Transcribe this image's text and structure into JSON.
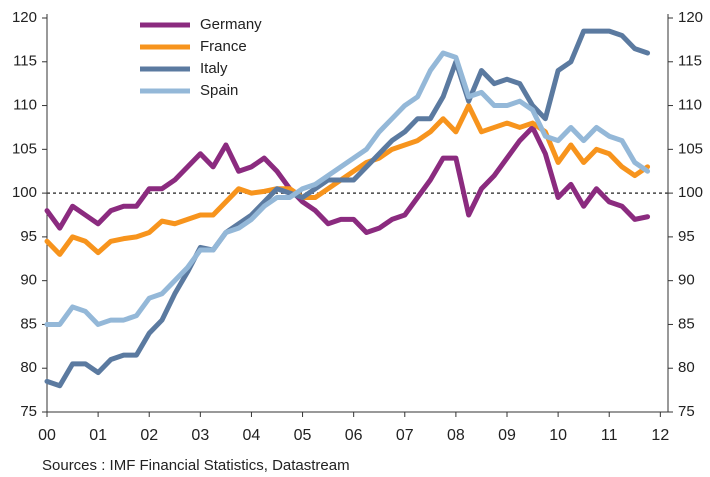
{
  "chart_data": {
    "type": "line",
    "x": [
      0,
      0.25,
      0.5,
      0.75,
      1,
      1.25,
      1.5,
      1.75,
      2,
      2.25,
      2.5,
      2.75,
      3,
      3.25,
      3.5,
      3.75,
      4,
      4.25,
      4.5,
      4.75,
      5,
      5.25,
      5.5,
      5.75,
      6,
      6.25,
      6.5,
      6.75,
      7,
      7.25,
      7.5,
      7.75,
      8,
      8.25,
      8.5,
      8.75,
      9,
      9.25,
      9.5,
      9.75,
      10,
      10.25,
      10.5,
      10.75,
      11,
      11.25,
      11.5,
      11.75
    ],
    "series": [
      {
        "name": "Germany",
        "color": "#8b2b7f",
        "values": [
          98,
          96,
          98.5,
          97.5,
          96.5,
          98,
          98.5,
          98.5,
          100.5,
          100.5,
          101.5,
          103,
          104.5,
          103,
          105.5,
          102.5,
          103,
          104,
          102.5,
          100.5,
          99,
          98,
          96.5,
          97,
          97,
          95.5,
          96,
          97,
          97.5,
          99.5,
          101.5,
          104,
          104,
          97.5,
          100.5,
          102,
          104,
          106,
          107.5,
          104.5,
          99.5,
          101,
          98.5,
          100.5,
          99,
          98.5,
          97,
          97.3
        ]
      },
      {
        "name": "France",
        "color": "#f7941d",
        "values": [
          94.5,
          93,
          95,
          94.5,
          93.2,
          94.5,
          94.8,
          95,
          95.5,
          96.8,
          96.5,
          97,
          97.5,
          97.5,
          99,
          100.5,
          100,
          100.2,
          100.5,
          100.5,
          99.5,
          99.5,
          100.5,
          101.5,
          102.5,
          103.5,
          104,
          105,
          105.5,
          106,
          107,
          108.5,
          107,
          110,
          107,
          107.5,
          108,
          107.5,
          108,
          107,
          103.5,
          105.5,
          103.5,
          105,
          104.5,
          103,
          102,
          103
        ]
      },
      {
        "name": "Italy",
        "color": "#5b7aa0",
        "values": [
          78.5,
          78,
          80.5,
          80.5,
          79.5,
          81,
          81.5,
          81.5,
          84,
          85.5,
          88.5,
          91,
          93.8,
          93.5,
          95.5,
          96.5,
          97.5,
          99,
          100.5,
          100,
          99.5,
          100.5,
          101.5,
          101.5,
          101.5,
          103,
          104.5,
          106,
          107,
          108.5,
          108.5,
          111,
          115,
          110.5,
          114,
          112.5,
          113,
          112.5,
          110,
          108.5,
          114,
          115,
          118.5,
          118.5,
          118.5,
          118,
          116.5,
          116
        ]
      },
      {
        "name": "Spain",
        "color": "#94b8d8",
        "values": [
          85,
          85,
          87,
          86.5,
          85,
          85.5,
          85.5,
          86,
          88,
          88.5,
          90,
          91.5,
          93.5,
          93.5,
          95.5,
          96,
          97,
          98.5,
          99.5,
          99.5,
          100.5,
          101,
          102,
          103,
          104,
          105,
          107,
          108.5,
          110,
          111,
          114,
          116,
          115.5,
          111,
          111.5,
          110,
          110,
          110.5,
          109.5,
          106.5,
          106,
          107.5,
          106,
          107.5,
          106.5,
          106,
          103.5,
          102.5
        ]
      }
    ],
    "xlim": [
      0,
      12.15
    ],
    "xticks": [
      {
        "value": 0,
        "label": "00"
      },
      {
        "value": 1,
        "label": "01"
      },
      {
        "value": 2,
        "label": "02"
      },
      {
        "value": 3,
        "label": "03"
      },
      {
        "value": 4,
        "label": "04"
      },
      {
        "value": 5,
        "label": "05"
      },
      {
        "value": 6,
        "label": "06"
      },
      {
        "value": 7,
        "label": "07"
      },
      {
        "value": 8,
        "label": "08"
      },
      {
        "value": 9,
        "label": "09"
      },
      10,
      11,
      12
    ],
    "ylim": [
      75,
      120
    ],
    "yticks": [
      75,
      80,
      85,
      90,
      95,
      100,
      105,
      110,
      115,
      120
    ],
    "reference_line": 100,
    "legend": "top-left",
    "source": "Sources : IMF Financial Statistics, Datastream"
  }
}
